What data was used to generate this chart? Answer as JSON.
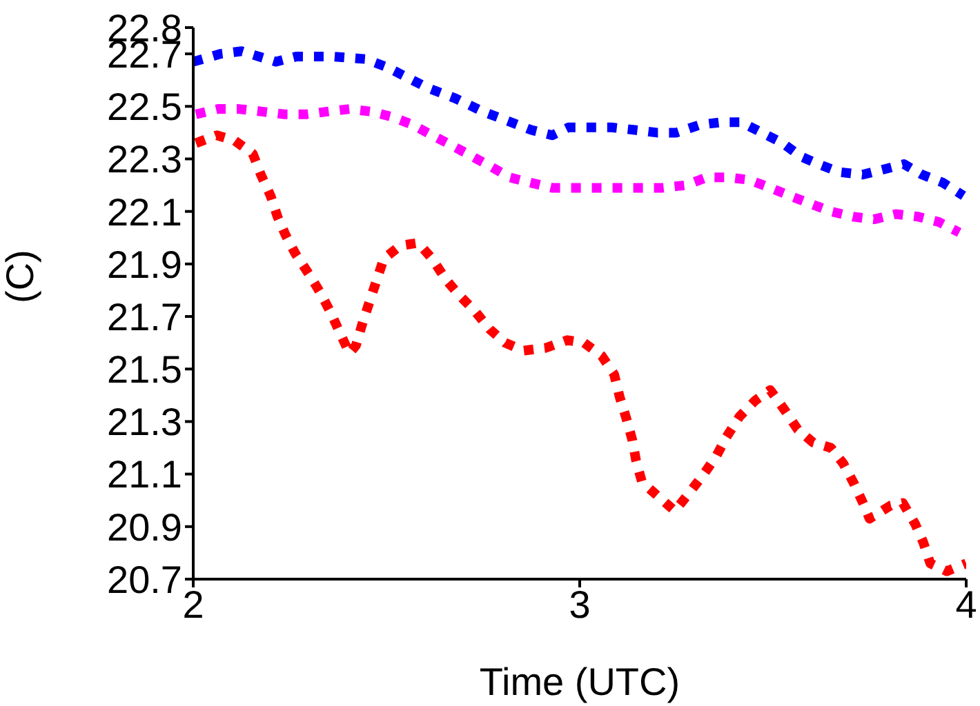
{
  "chart_data": {
    "type": "line",
    "xlabel": "Time (UTC)",
    "ylabel": "(C)",
    "xlim": [
      2,
      4
    ],
    "xticks": [
      2,
      3,
      4
    ],
    "ylim": [
      20.7,
      22.8
    ],
    "yticks": [
      22.8,
      22.7,
      22.5,
      22.3,
      22.1,
      21.9,
      21.7,
      21.5,
      21.3,
      21.1,
      20.9,
      20.7
    ],
    "grid": false,
    "legend": false,
    "marker": "none",
    "line_style": "dotted",
    "series": [
      {
        "color": "#0000ff",
        "x": [
          2.0,
          2.071,
          2.125,
          2.214,
          2.268,
          2.357,
          2.446,
          2.5,
          2.554,
          2.607,
          2.679,
          2.75,
          2.804,
          2.875,
          2.929,
          2.971,
          3.029,
          3.082,
          3.143,
          3.2,
          3.25,
          3.311,
          3.368,
          3.418,
          3.471,
          3.525,
          3.571,
          3.618,
          3.671,
          3.732,
          3.786,
          3.839,
          3.886,
          3.939,
          3.993
        ],
        "values": [
          22.67,
          22.7,
          22.71,
          22.67,
          22.69,
          22.69,
          22.68,
          22.65,
          22.61,
          22.57,
          22.53,
          22.48,
          22.45,
          22.41,
          22.39,
          22.42,
          22.42,
          22.42,
          22.41,
          22.4,
          22.4,
          22.43,
          22.44,
          22.44,
          22.4,
          22.36,
          22.31,
          22.28,
          22.25,
          22.24,
          22.26,
          22.28,
          22.24,
          22.21,
          22.16
        ]
      },
      {
        "color": "#ff00ff",
        "x": [
          2.007,
          2.064,
          2.118,
          2.179,
          2.236,
          2.293,
          2.346,
          2.404,
          2.461,
          2.514,
          2.568,
          2.618,
          2.671,
          2.721,
          2.771,
          2.818,
          2.871,
          2.929,
          2.982,
          3.046,
          3.1,
          3.161,
          3.214,
          3.275,
          3.329,
          3.382,
          3.439,
          3.493,
          3.543,
          3.596,
          3.65,
          3.707,
          3.761,
          3.818,
          3.875,
          3.929,
          3.982
        ],
        "values": [
          22.47,
          22.49,
          22.49,
          22.48,
          22.47,
          22.47,
          22.48,
          22.49,
          22.48,
          22.46,
          22.43,
          22.39,
          22.35,
          22.31,
          22.27,
          22.23,
          22.21,
          22.19,
          22.19,
          22.19,
          22.19,
          22.19,
          22.19,
          22.2,
          22.23,
          22.23,
          22.22,
          22.19,
          22.16,
          22.13,
          22.1,
          22.08,
          22.07,
          22.09,
          22.08,
          22.06,
          22.02
        ]
      },
      {
        "color": "#ff0000",
        "x": [
          2.007,
          2.061,
          2.107,
          2.154,
          2.175,
          2.2,
          2.218,
          2.239,
          2.264,
          2.3,
          2.329,
          2.354,
          2.379,
          2.404,
          2.421,
          2.439,
          2.457,
          2.475,
          2.493,
          2.536,
          2.582,
          2.618,
          2.654,
          2.689,
          2.729,
          2.768,
          2.807,
          2.854,
          2.911,
          2.968,
          3.011,
          3.057,
          3.089,
          3.104,
          3.121,
          3.136,
          3.146,
          3.161,
          3.207,
          3.246,
          3.279,
          3.321,
          3.354,
          3.379,
          3.414,
          3.454,
          3.493,
          3.532,
          3.564,
          3.604,
          3.65,
          3.682,
          3.711,
          3.736,
          3.75,
          3.804,
          3.836,
          3.868,
          3.889,
          3.907,
          3.95,
          4.0
        ],
        "values": [
          22.36,
          22.39,
          22.37,
          22.32,
          22.24,
          22.16,
          22.08,
          22.01,
          21.94,
          21.86,
          21.79,
          21.72,
          21.64,
          21.56,
          21.59,
          21.68,
          21.76,
          21.84,
          21.92,
          21.97,
          21.98,
          21.92,
          21.84,
          21.78,
          21.72,
          21.65,
          21.6,
          21.57,
          21.58,
          21.61,
          21.6,
          21.55,
          21.48,
          21.39,
          21.31,
          21.23,
          21.15,
          21.07,
          21.01,
          20.96,
          21.02,
          21.1,
          21.17,
          21.24,
          21.32,
          21.38,
          21.42,
          21.34,
          21.27,
          21.22,
          21.2,
          21.14,
          21.06,
          20.98,
          20.93,
          20.98,
          20.99,
          20.91,
          20.84,
          20.76,
          20.73,
          20.76
        ]
      }
    ]
  }
}
